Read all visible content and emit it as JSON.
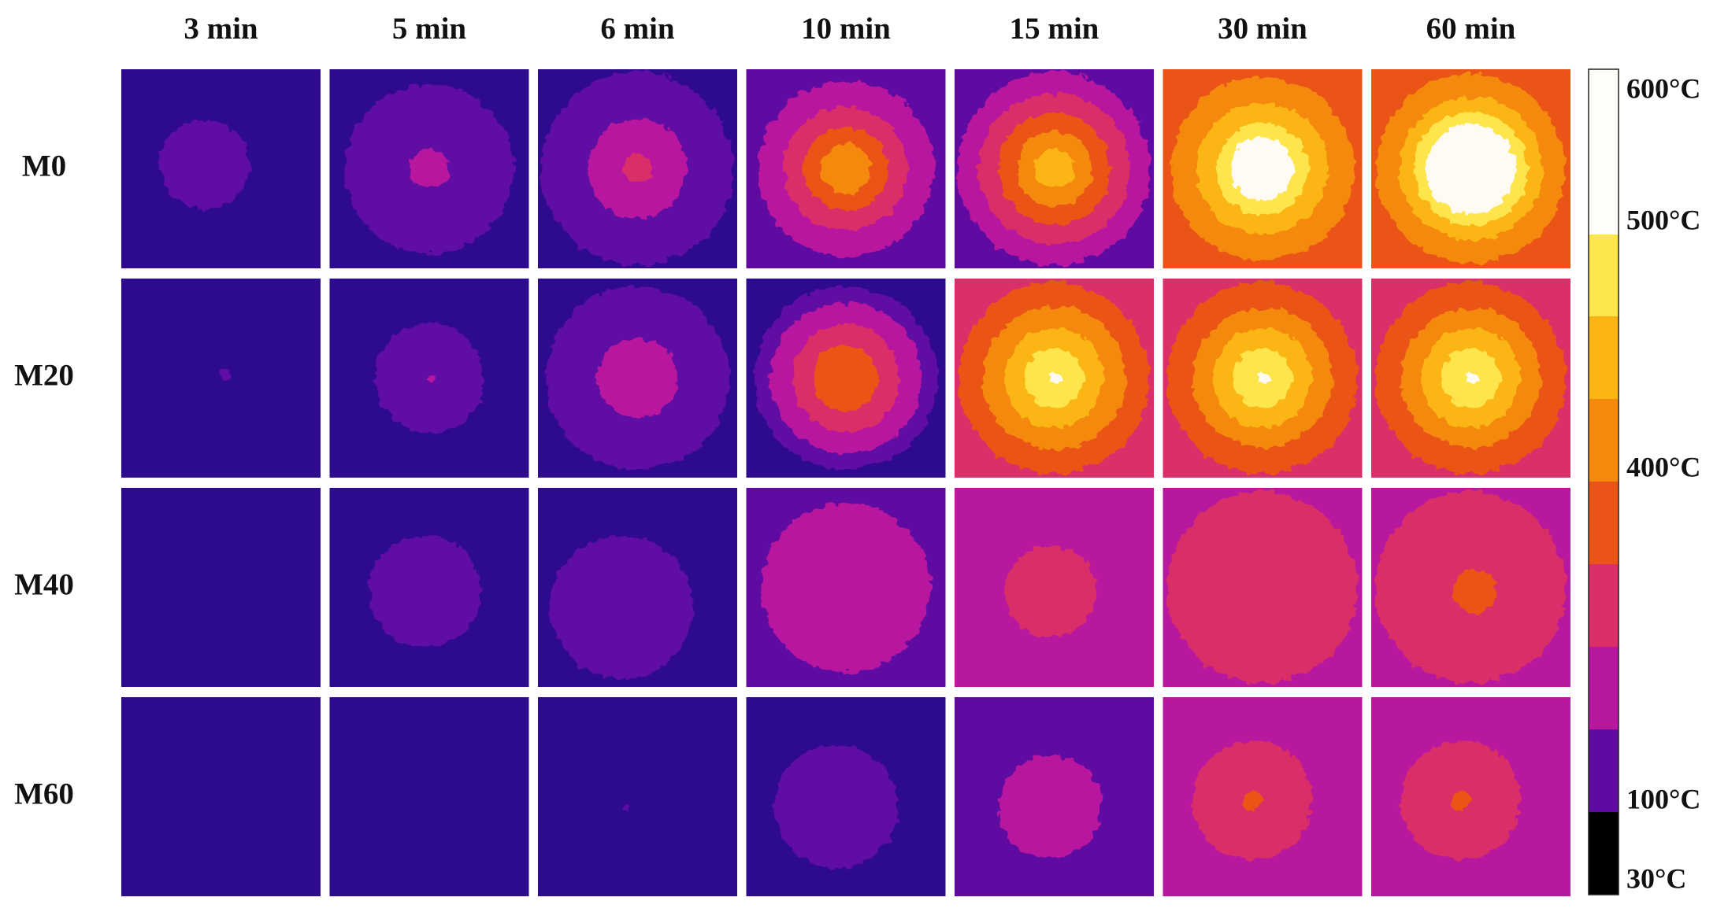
{
  "column_headers": [
    "3 min",
    "5 min",
    "6 min",
    "10 min",
    "15 min",
    "30 min",
    "60 min"
  ],
  "row_labels": [
    "M0",
    "M20",
    "M40",
    "M60"
  ],
  "colorbar": {
    "labels": [
      "600°C",
      "500°C",
      "400°C",
      "100°C",
      "30°C"
    ]
  }
}
